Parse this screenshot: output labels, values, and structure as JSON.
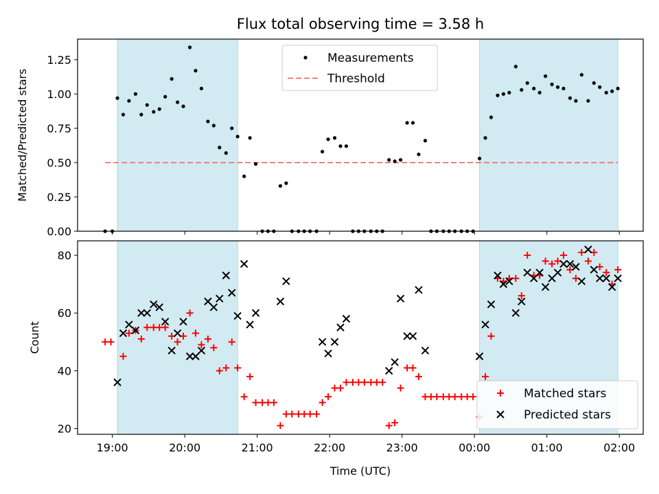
{
  "figure": {
    "title": "Flux total observing time = 3.58 h",
    "xlabel": "Time (UTC)",
    "xticks": [
      "19:00",
      "20:00",
      "21:00",
      "22:00",
      "23:00",
      "00:00",
      "01:00",
      "02:00"
    ],
    "shade_color": "#add8e6"
  },
  "chart_data": [
    {
      "type": "scatter",
      "ylabel": "Matched/Predicted stars",
      "xlim_hours": [
        18.52,
        26.33
      ],
      "ylim": [
        0,
        1.4
      ],
      "yticks": [
        0.0,
        0.25,
        0.5,
        0.75,
        1.0,
        1.25
      ],
      "yticks_labels": [
        "0.00",
        "0.25",
        "0.50",
        "0.75",
        "1.00",
        "1.25"
      ],
      "shaded_regions_hours": [
        [
          19.07,
          20.73
        ],
        [
          24.07,
          25.98
        ]
      ],
      "legend": {
        "placement": "top-center",
        "entries": [
          "Measurements",
          "Threshold"
        ]
      },
      "threshold": {
        "name": "Threshold",
        "value": 0.5,
        "x_range_hours": [
          18.9,
          25.98
        ],
        "color": "#f08080",
        "style": "dashed"
      },
      "series": [
        {
          "name": "Measurements",
          "color": "#000000",
          "marker": "dot",
          "points": [
            [
              18.9,
              0.0
            ],
            [
              19.0,
              0.0
            ],
            [
              19.07,
              0.97
            ],
            [
              19.15,
              0.85
            ],
            [
              19.23,
              0.95
            ],
            [
              19.32,
              1.0
            ],
            [
              19.4,
              0.85
            ],
            [
              19.48,
              0.92
            ],
            [
              19.57,
              0.87
            ],
            [
              19.65,
              0.89
            ],
            [
              19.73,
              0.98
            ],
            [
              19.82,
              1.11
            ],
            [
              19.9,
              0.94
            ],
            [
              19.98,
              0.91
            ],
            [
              20.07,
              1.34
            ],
            [
              20.15,
              1.17
            ],
            [
              20.23,
              1.04
            ],
            [
              20.32,
              0.8
            ],
            [
              20.4,
              0.77
            ],
            [
              20.48,
              0.61
            ],
            [
              20.57,
              0.57
            ],
            [
              20.65,
              0.75
            ],
            [
              20.73,
              0.69
            ],
            [
              20.82,
              0.4
            ],
            [
              20.9,
              0.68
            ],
            [
              20.98,
              0.49
            ],
            [
              21.07,
              0.0
            ],
            [
              21.15,
              0.0
            ],
            [
              21.23,
              0.0
            ],
            [
              21.32,
              0.33
            ],
            [
              21.4,
              0.35
            ],
            [
              21.48,
              0.0
            ],
            [
              21.57,
              0.0
            ],
            [
              21.65,
              0.0
            ],
            [
              21.73,
              0.0
            ],
            [
              21.82,
              0.0
            ],
            [
              21.9,
              0.58
            ],
            [
              21.98,
              0.67
            ],
            [
              22.07,
              0.68
            ],
            [
              22.15,
              0.62
            ],
            [
              22.23,
              0.62
            ],
            [
              22.32,
              0.0
            ],
            [
              22.4,
              0.0
            ],
            [
              22.48,
              0.0
            ],
            [
              22.57,
              0.0
            ],
            [
              22.65,
              0.0
            ],
            [
              22.73,
              0.0
            ],
            [
              22.82,
              0.52
            ],
            [
              22.9,
              0.51
            ],
            [
              22.98,
              0.52
            ],
            [
              23.07,
              0.79
            ],
            [
              23.15,
              0.79
            ],
            [
              23.23,
              0.56
            ],
            [
              23.32,
              0.66
            ],
            [
              23.4,
              0.0
            ],
            [
              23.48,
              0.0
            ],
            [
              23.57,
              0.0
            ],
            [
              23.65,
              0.0
            ],
            [
              23.73,
              0.0
            ],
            [
              23.82,
              0.0
            ],
            [
              23.9,
              0.0
            ],
            [
              23.98,
              0.0
            ],
            [
              24.07,
              0.53
            ],
            [
              24.15,
              0.68
            ],
            [
              24.23,
              0.83
            ],
            [
              24.32,
              0.99
            ],
            [
              24.4,
              1.0
            ],
            [
              24.48,
              1.01
            ],
            [
              24.57,
              1.2
            ],
            [
              24.65,
              1.03
            ],
            [
              24.73,
              1.08
            ],
            [
              24.82,
              1.04
            ],
            [
              24.9,
              1.01
            ],
            [
              24.98,
              1.13
            ],
            [
              25.07,
              1.07
            ],
            [
              25.15,
              1.05
            ],
            [
              25.23,
              1.04
            ],
            [
              25.32,
              0.97
            ],
            [
              25.4,
              0.95
            ],
            [
              25.48,
              1.14
            ],
            [
              25.57,
              0.95
            ],
            [
              25.65,
              1.08
            ],
            [
              25.73,
              1.05
            ],
            [
              25.82,
              1.01
            ],
            [
              25.9,
              1.02
            ],
            [
              25.98,
              1.04
            ]
          ]
        }
      ]
    },
    {
      "type": "scatter",
      "ylabel": "Count",
      "xlim_hours": [
        18.52,
        26.33
      ],
      "ylim": [
        18,
        85
      ],
      "yticks": [
        20,
        40,
        60,
        80
      ],
      "yticks_labels": [
        "20",
        "40",
        "60",
        "80"
      ],
      "shaded_regions_hours": [
        [
          19.07,
          20.73
        ],
        [
          24.07,
          25.98
        ]
      ],
      "legend": {
        "placement": "lower-right",
        "entries": [
          "Matched stars",
          "Predicted stars"
        ]
      },
      "series": [
        {
          "name": "Matched stars",
          "color": "#ff0000",
          "marker": "plus",
          "points": [
            [
              18.9,
              50
            ],
            [
              18.98,
              50
            ],
            [
              19.15,
              45
            ],
            [
              19.23,
              53
            ],
            [
              19.32,
              54
            ],
            [
              19.4,
              51
            ],
            [
              19.48,
              55
            ],
            [
              19.57,
              55
            ],
            [
              19.65,
              55
            ],
            [
              19.73,
              55
            ],
            [
              19.82,
              52
            ],
            [
              19.9,
              50
            ],
            [
              19.98,
              52
            ],
            [
              20.07,
              60
            ],
            [
              20.15,
              53
            ],
            [
              20.23,
              49
            ],
            [
              20.32,
              51
            ],
            [
              20.4,
              48
            ],
            [
              20.48,
              40
            ],
            [
              20.57,
              41
            ],
            [
              20.65,
              50
            ],
            [
              20.73,
              41
            ],
            [
              20.82,
              31
            ],
            [
              20.9,
              38
            ],
            [
              20.98,
              29
            ],
            [
              21.07,
              29
            ],
            [
              21.15,
              29
            ],
            [
              21.23,
              29
            ],
            [
              21.32,
              21
            ],
            [
              21.4,
              25
            ],
            [
              21.48,
              25
            ],
            [
              21.57,
              25
            ],
            [
              21.65,
              25
            ],
            [
              21.73,
              25
            ],
            [
              21.82,
              25
            ],
            [
              21.9,
              29
            ],
            [
              21.98,
              31
            ],
            [
              22.07,
              34
            ],
            [
              22.15,
              34
            ],
            [
              22.23,
              36
            ],
            [
              22.32,
              36
            ],
            [
              22.4,
              36
            ],
            [
              22.48,
              36
            ],
            [
              22.57,
              36
            ],
            [
              22.65,
              36
            ],
            [
              22.73,
              36
            ],
            [
              22.82,
              21
            ],
            [
              22.9,
              22
            ],
            [
              22.98,
              34
            ],
            [
              23.07,
              41
            ],
            [
              23.15,
              41
            ],
            [
              23.23,
              38
            ],
            [
              23.32,
              31
            ],
            [
              23.4,
              31
            ],
            [
              23.48,
              31
            ],
            [
              23.57,
              31
            ],
            [
              23.65,
              31
            ],
            [
              23.73,
              31
            ],
            [
              23.82,
              31
            ],
            [
              23.9,
              31
            ],
            [
              23.98,
              31
            ],
            [
              24.07,
              24
            ],
            [
              24.15,
              38
            ],
            [
              24.23,
              52
            ],
            [
              24.32,
              72
            ],
            [
              24.4,
              71
            ],
            [
              24.48,
              72
            ],
            [
              24.57,
              72
            ],
            [
              24.65,
              66
            ],
            [
              24.73,
              80
            ],
            [
              24.82,
              73
            ],
            [
              24.9,
              73
            ],
            [
              24.98,
              78
            ],
            [
              25.07,
              77
            ],
            [
              25.15,
              78
            ],
            [
              25.23,
              80
            ],
            [
              25.32,
              75
            ],
            [
              25.4,
              72
            ],
            [
              25.48,
              81
            ],
            [
              25.57,
              78
            ],
            [
              25.65,
              81
            ],
            [
              25.73,
              76
            ],
            [
              25.82,
              74
            ],
            [
              25.9,
              70
            ],
            [
              25.98,
              75
            ]
          ]
        },
        {
          "name": "Predicted stars",
          "color": "#000000",
          "marker": "x",
          "points": [
            [
              19.07,
              36
            ],
            [
              19.15,
              53
            ],
            [
              19.23,
              56
            ],
            [
              19.32,
              54
            ],
            [
              19.4,
              60
            ],
            [
              19.48,
              60
            ],
            [
              19.57,
              63
            ],
            [
              19.65,
              62
            ],
            [
              19.73,
              57
            ],
            [
              19.82,
              47
            ],
            [
              19.9,
              53
            ],
            [
              19.98,
              57
            ],
            [
              20.07,
              45
            ],
            [
              20.15,
              45
            ],
            [
              20.23,
              47
            ],
            [
              20.32,
              64
            ],
            [
              20.4,
              62
            ],
            [
              20.48,
              65
            ],
            [
              20.57,
              73
            ],
            [
              20.65,
              67
            ],
            [
              20.73,
              59
            ],
            [
              20.82,
              77
            ],
            [
              20.9,
              56
            ],
            [
              20.98,
              60
            ],
            [
              21.32,
              64
            ],
            [
              21.4,
              71
            ],
            [
              21.9,
              50
            ],
            [
              21.98,
              46
            ],
            [
              22.07,
              50
            ],
            [
              22.15,
              55
            ],
            [
              22.23,
              58
            ],
            [
              22.82,
              40
            ],
            [
              22.9,
              43
            ],
            [
              22.98,
              65
            ],
            [
              23.07,
              52
            ],
            [
              23.15,
              52
            ],
            [
              23.23,
              68
            ],
            [
              23.32,
              47
            ],
            [
              24.07,
              45
            ],
            [
              24.15,
              56
            ],
            [
              24.23,
              63
            ],
            [
              24.32,
              73
            ],
            [
              24.4,
              70
            ],
            [
              24.48,
              71
            ],
            [
              24.57,
              60
            ],
            [
              24.65,
              64
            ],
            [
              24.73,
              74
            ],
            [
              24.82,
              72
            ],
            [
              24.9,
              74
            ],
            [
              24.98,
              69
            ],
            [
              25.07,
              72
            ],
            [
              25.15,
              74
            ],
            [
              25.23,
              77
            ],
            [
              25.32,
              77
            ],
            [
              25.4,
              76
            ],
            [
              25.48,
              71
            ],
            [
              25.57,
              82
            ],
            [
              25.65,
              75
            ],
            [
              25.73,
              72
            ],
            [
              25.82,
              72
            ],
            [
              25.9,
              69
            ],
            [
              25.98,
              72
            ]
          ]
        }
      ]
    }
  ]
}
